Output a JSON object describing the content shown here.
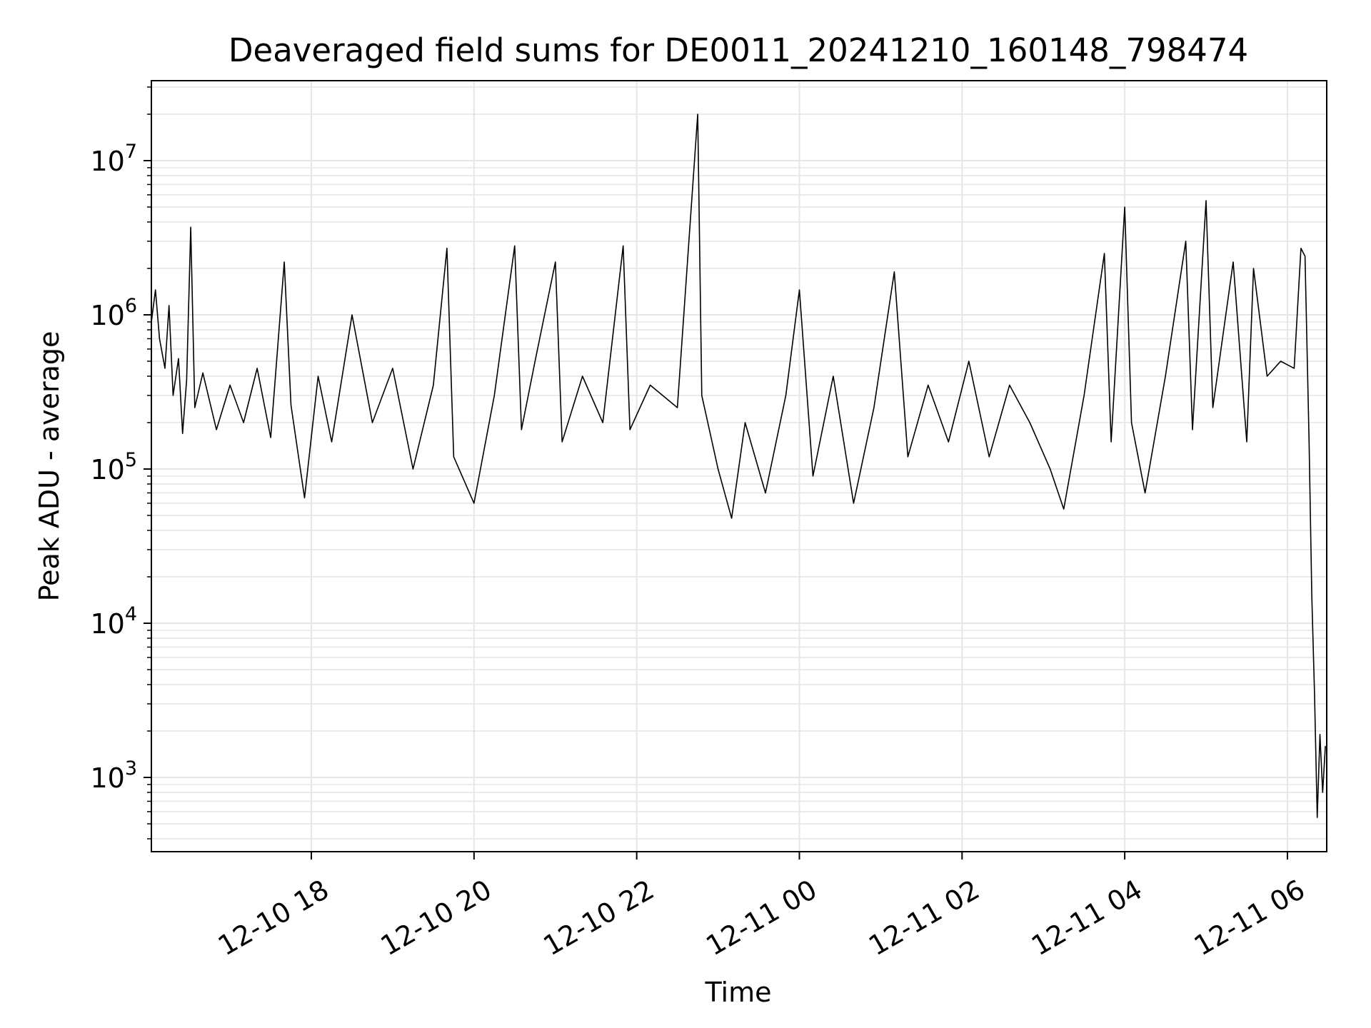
{
  "chart_data": {
    "type": "line",
    "title": "Deaveraged field sums for DE0011_20241210_160148_798474",
    "xlabel": "Time",
    "ylabel": "Peak ADU - average",
    "yscale": "log",
    "ylim": [
      330,
      33000000
    ],
    "xlim": [
      "2024-12-10 16:02",
      "2024-12-11 06:29"
    ],
    "grid": true,
    "line_color": "#000000",
    "grid_color": "#e6e6e6",
    "x_ticks": [
      {
        "value": "2024-12-10 18:00",
        "label": "12-10 18"
      },
      {
        "value": "2024-12-10 20:00",
        "label": "12-10 20"
      },
      {
        "value": "2024-12-10 22:00",
        "label": "12-10 22"
      },
      {
        "value": "2024-12-11 00:00",
        "label": "12-11 00"
      },
      {
        "value": "2024-12-11 02:00",
        "label": "12-11 02"
      },
      {
        "value": "2024-12-11 04:00",
        "label": "12-11 04"
      },
      {
        "value": "2024-12-11 06:00",
        "label": "12-11 06"
      }
    ],
    "y_ticks": [
      {
        "value": 1000,
        "base": "10",
        "exp": "3"
      },
      {
        "value": 10000,
        "base": "10",
        "exp": "4"
      },
      {
        "value": 100000,
        "base": "10",
        "exp": "5"
      },
      {
        "value": 1000000,
        "base": "10",
        "exp": "6"
      },
      {
        "value": 10000000,
        "base": "10",
        "exp": "7"
      }
    ],
    "series": [
      {
        "points": [
          [
            "2024-12-10 16:02",
            900000
          ],
          [
            "2024-12-10 16:05",
            1450000
          ],
          [
            "2024-12-10 16:08",
            700000
          ],
          [
            "2024-12-10 16:12",
            450000
          ],
          [
            "2024-12-10 16:15",
            1150000
          ],
          [
            "2024-12-10 16:18",
            300000
          ],
          [
            "2024-12-10 16:22",
            520000
          ],
          [
            "2024-12-10 16:25",
            170000
          ],
          [
            "2024-12-10 16:28",
            380000
          ],
          [
            "2024-12-10 16:31",
            3700000
          ],
          [
            "2024-12-10 16:34",
            250000
          ],
          [
            "2024-12-10 16:40",
            420000
          ],
          [
            "2024-12-10 16:50",
            180000
          ],
          [
            "2024-12-10 17:00",
            350000
          ],
          [
            "2024-12-10 17:10",
            200000
          ],
          [
            "2024-12-10 17:20",
            450000
          ],
          [
            "2024-12-10 17:30",
            160000
          ],
          [
            "2024-12-10 17:40",
            2200000
          ],
          [
            "2024-12-10 17:45",
            260000
          ],
          [
            "2024-12-10 17:55",
            65000
          ],
          [
            "2024-12-10 18:05",
            400000
          ],
          [
            "2024-12-10 18:15",
            150000
          ],
          [
            "2024-12-10 18:30",
            1000000
          ],
          [
            "2024-12-10 18:45",
            200000
          ],
          [
            "2024-12-10 19:00",
            450000
          ],
          [
            "2024-12-10 19:15",
            100000
          ],
          [
            "2024-12-10 19:30",
            350000
          ],
          [
            "2024-12-10 19:40",
            2700000
          ],
          [
            "2024-12-10 19:45",
            120000
          ],
          [
            "2024-12-10 20:00",
            60000
          ],
          [
            "2024-12-10 20:15",
            300000
          ],
          [
            "2024-12-10 20:30",
            2800000
          ],
          [
            "2024-12-10 20:35",
            180000
          ],
          [
            "2024-12-10 20:45",
            500000
          ],
          [
            "2024-12-10 21:00",
            2200000
          ],
          [
            "2024-12-10 21:05",
            150000
          ],
          [
            "2024-12-10 21:20",
            400000
          ],
          [
            "2024-12-10 21:35",
            200000
          ],
          [
            "2024-12-10 21:50",
            2800000
          ],
          [
            "2024-12-10 21:55",
            180000
          ],
          [
            "2024-12-10 22:10",
            350000
          ],
          [
            "2024-12-10 22:30",
            250000
          ],
          [
            "2024-12-10 22:45",
            20000000
          ],
          [
            "2024-12-10 22:48",
            300000
          ],
          [
            "2024-12-10 23:00",
            100000
          ],
          [
            "2024-12-10 23:10",
            48000
          ],
          [
            "2024-12-10 23:20",
            200000
          ],
          [
            "2024-12-10 23:35",
            70000
          ],
          [
            "2024-12-10 23:50",
            300000
          ],
          [
            "2024-12-11 00:00",
            1450000
          ],
          [
            "2024-12-11 00:10",
            90000
          ],
          [
            "2024-12-11 00:25",
            400000
          ],
          [
            "2024-12-11 00:40",
            60000
          ],
          [
            "2024-12-11 00:55",
            250000
          ],
          [
            "2024-12-11 01:10",
            1900000
          ],
          [
            "2024-12-11 01:20",
            120000
          ],
          [
            "2024-12-11 01:35",
            350000
          ],
          [
            "2024-12-11 01:50",
            150000
          ],
          [
            "2024-12-11 02:05",
            500000
          ],
          [
            "2024-12-11 02:20",
            120000
          ],
          [
            "2024-12-11 02:35",
            350000
          ],
          [
            "2024-12-11 02:50",
            200000
          ],
          [
            "2024-12-11 03:05",
            100000
          ],
          [
            "2024-12-11 03:15",
            55000
          ],
          [
            "2024-12-11 03:30",
            300000
          ],
          [
            "2024-12-11 03:45",
            2500000
          ],
          [
            "2024-12-11 03:50",
            150000
          ],
          [
            "2024-12-11 04:00",
            5000000
          ],
          [
            "2024-12-11 04:05",
            200000
          ],
          [
            "2024-12-11 04:15",
            70000
          ],
          [
            "2024-12-11 04:30",
            400000
          ],
          [
            "2024-12-11 04:45",
            3000000
          ],
          [
            "2024-12-11 04:50",
            180000
          ],
          [
            "2024-12-11 05:00",
            5500000
          ],
          [
            "2024-12-11 05:05",
            250000
          ],
          [
            "2024-12-11 05:20",
            2200000
          ],
          [
            "2024-12-11 05:30",
            150000
          ],
          [
            "2024-12-11 05:35",
            2000000
          ],
          [
            "2024-12-11 05:45",
            400000
          ],
          [
            "2024-12-11 05:55",
            500000
          ],
          [
            "2024-12-11 06:05",
            450000
          ],
          [
            "2024-12-11 06:10",
            2700000
          ],
          [
            "2024-12-11 06:13",
            2400000
          ],
          [
            "2024-12-11 06:16",
            150000
          ],
          [
            "2024-12-11 06:18",
            15000
          ],
          [
            "2024-12-11 06:20",
            3500
          ],
          [
            "2024-12-11 06:22",
            550
          ],
          [
            "2024-12-11 06:24",
            1900
          ],
          [
            "2024-12-11 06:26",
            800
          ],
          [
            "2024-12-11 06:28",
            1600
          ]
        ]
      }
    ]
  }
}
